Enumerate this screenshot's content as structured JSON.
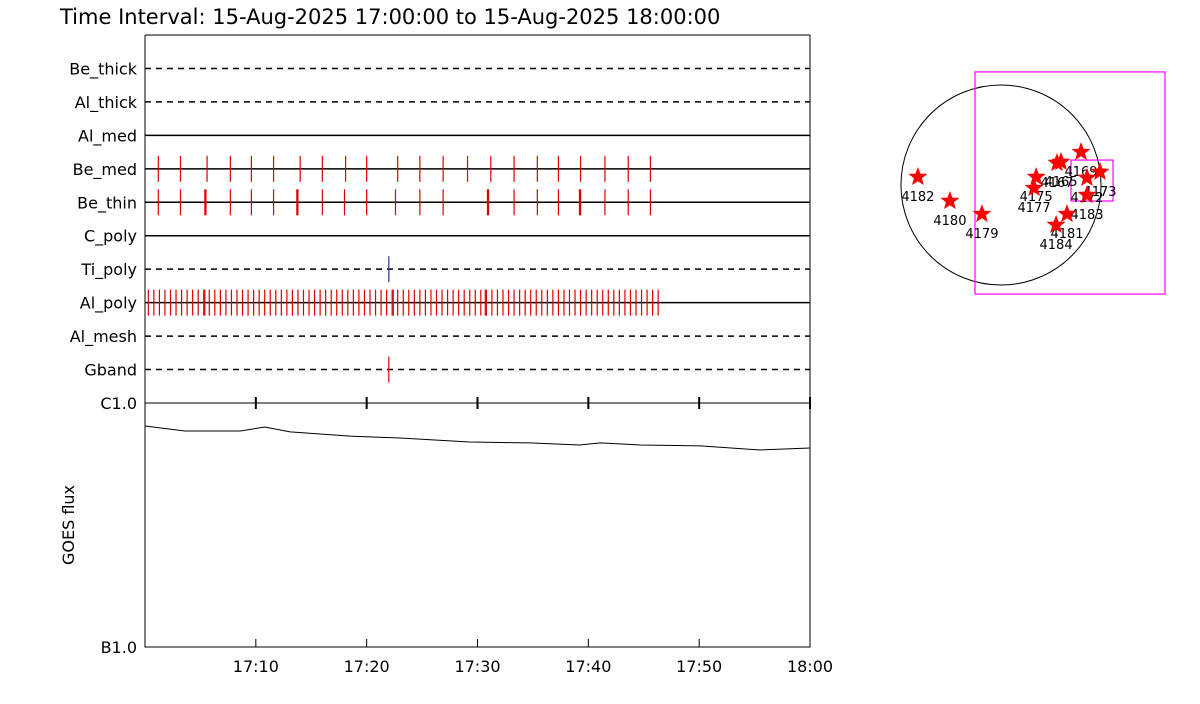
{
  "chart_data": [
    {
      "type": "timeline",
      "title": "Time Interval: 15-Aug-2025 17:00:00 to 15-Aug-2025 18:00:00",
      "categories": [
        "Be_thick",
        "Al_thick",
        "Al_med",
        "Be_med",
        "Be_thin",
        "C_poly",
        "Ti_poly",
        "Al_poly",
        "Al_mesh",
        "Gband"
      ],
      "line_styles": [
        "dashed",
        "dashed",
        "solid",
        "solid",
        "solid",
        "solid",
        "dashed",
        "solid",
        "dashed",
        "dashed"
      ],
      "colors": [
        "#dd0000",
        "#dd0000",
        "#dd0000",
        "#dd0000",
        "#dd0000",
        "#dd0000",
        "#2030a0",
        "#dd0000",
        "#dd0000",
        "#dd0000"
      ],
      "xlim": [
        0,
        60
      ],
      "events": [
        [],
        [],
        [],
        [
          1.2,
          3.2,
          5.6,
          7.7,
          9.6,
          11.6,
          14.0,
          16.0,
          18.1,
          20.0,
          22.8,
          24.8,
          26.9,
          29.1,
          31.2,
          33.3,
          35.4,
          37.3,
          39.3,
          41.5,
          43.6,
          45.6
        ],
        [
          1.2,
          3.2,
          5.4,
          5.5,
          7.7,
          9.6,
          11.6,
          13.7,
          13.8,
          16.0,
          18.0,
          20.0,
          22.6,
          24.8,
          26.9,
          30.9,
          31.0,
          33.3,
          35.4,
          37.3,
          39.2,
          39.3,
          41.5,
          43.6,
          45.6
        ],
        [],
        [
          22.0
        ],
        [
          0.3,
          0.8,
          1.3,
          1.8,
          2.3,
          2.8,
          3.3,
          3.8,
          4.3,
          4.8,
          5.3,
          5.4,
          5.8,
          6.3,
          6.8,
          7.3,
          7.8,
          8.3,
          8.8,
          9.3,
          9.8,
          10.3,
          10.8,
          11.3,
          11.8,
          12.3,
          12.8,
          13.3,
          13.8,
          14.3,
          14.8,
          15.3,
          15.8,
          16.3,
          16.8,
          17.3,
          17.8,
          18.3,
          18.8,
          19.3,
          19.8,
          20.3,
          20.8,
          21.3,
          21.8,
          22.3,
          22.4,
          22.8,
          23.3,
          23.8,
          24.3,
          24.8,
          25.3,
          25.8,
          26.3,
          26.8,
          27.3,
          27.8,
          28.3,
          28.8,
          29.3,
          29.8,
          30.3,
          30.7,
          30.8,
          31.3,
          31.8,
          32.3,
          32.8,
          33.3,
          33.8,
          34.3,
          34.8,
          35.3,
          35.8,
          36.3,
          36.8,
          37.3,
          37.8,
          38.3,
          38.8,
          39.3,
          39.8,
          40.3,
          40.8,
          41.3,
          41.8,
          42.3,
          42.8,
          43.3,
          43.8,
          44.3,
          44.8,
          45.3,
          45.8,
          46.3
        ],
        [],
        [
          22.0
        ]
      ]
    },
    {
      "type": "line",
      "ylabel": "GOES flux",
      "log": true,
      "color": "#000000",
      "x": [
        0,
        3.6,
        8.6,
        10.8,
        13.1,
        18.5,
        23.0,
        29.3,
        34.7,
        39.2,
        41.1,
        44.7,
        50.1,
        55.5,
        60
      ],
      "values": [
        8.05e-07,
        7.68e-07,
        7.68e-07,
        7.97e-07,
        7.61e-07,
        7.32e-07,
        7.19e-07,
        6.92e-07,
        6.86e-07,
        6.73e-07,
        6.86e-07,
        6.73e-07,
        6.67e-07,
        6.42e-07,
        6.54e-07
      ],
      "xlim": [
        0,
        60
      ],
      "xticks": [
        {
          "value": 10,
          "label": "17:10"
        },
        {
          "value": 20,
          "label": "17:20"
        },
        {
          "value": 30,
          "label": "17:30"
        },
        {
          "value": 40,
          "label": "17:40"
        },
        {
          "value": 50,
          "label": "17:50"
        },
        {
          "value": 60,
          "label": "18:00"
        }
      ],
      "ylim": [
        1e-07,
        1e-06
      ],
      "yticks": [
        {
          "value": 1e-07,
          "label": "B1.0"
        },
        {
          "value": 1e-06,
          "label": "C1.0"
        }
      ]
    },
    {
      "type": "scatter",
      "color": "#ff0000",
      "radius": 950,
      "xlim": [
        -1000,
        1700
      ],
      "ylim": [
        -1100,
        1100
      ],
      "labels": [
        "4182",
        "4180",
        "4179",
        "4175",
        "4177",
        "4167",
        "4165",
        "4169",
        "4172",
        "4173",
        "4183",
        "4181",
        "4184"
      ],
      "x": [
        -789,
        -485,
        -181,
        334,
        314,
        532,
        570,
        760,
        817,
        940,
        817,
        627,
        523
      ],
      "values": [
        76,
        -152,
        -276,
        76,
        -29,
        209,
        219,
        313,
        67,
        124,
        -95,
        -276,
        -380
      ],
      "fov_color": "#ff00ff",
      "fov": [
        {
          "x": [
            -247,
            1558
          ],
          "y": [
            -1036,
            1074
          ]
        },
        {
          "x": [
            665,
            1064
          ],
          "y": [
            -152,
            237
          ]
        }
      ]
    }
  ]
}
